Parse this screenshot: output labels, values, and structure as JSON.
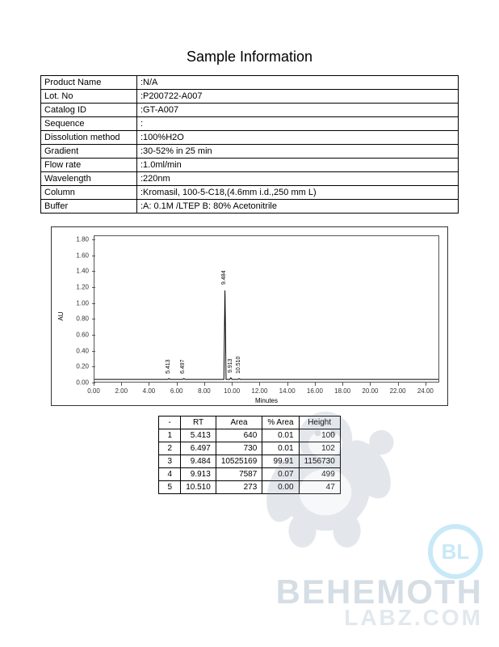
{
  "title": "Sample Information",
  "info_rows": [
    {
      "label": "Product Name",
      "value": ":N/A"
    },
    {
      "label": "Lot. No",
      "value": ":P200722-A007"
    },
    {
      "label": "Catalog ID",
      "value": ":GT-A007"
    },
    {
      "label": "Sequence",
      "value": ":"
    },
    {
      "label": "Dissolution method",
      "value": ":100%H2O"
    },
    {
      "label": "Gradient",
      "value": ":30-52% in 25 min"
    },
    {
      "label": "Flow rate",
      "value": ":1.0ml/min"
    },
    {
      "label": "Wavelength",
      "value": ":220nm"
    },
    {
      "label": "Column",
      "value": ":Kromasil, 100-5-C18,(4.6mm i.d.,250 mm L)"
    },
    {
      "label": "Buffer",
      "value": ":A: 0.1M /LTEP          B: 80% Acetonitrile"
    }
  ],
  "chart": {
    "type": "line",
    "x_label": "Minutes",
    "y_label": "AU",
    "xlim": [
      0,
      25
    ],
    "ylim": [
      0,
      1.85
    ],
    "x_ticks": [
      0.0,
      2.0,
      4.0,
      6.0,
      8.0,
      10.0,
      12.0,
      14.0,
      16.0,
      18.0,
      20.0,
      22.0,
      24.0
    ],
    "y_ticks": [
      0.0,
      0.2,
      0.4,
      0.6,
      0.8,
      1.0,
      1.2,
      1.4,
      1.6,
      1.8
    ],
    "line_color": "#000000",
    "background_color": "#ffffff",
    "baseline_y": 0.03,
    "peaks": [
      {
        "rt": 5.413,
        "height_au": 0.04,
        "label": "5.413"
      },
      {
        "rt": 6.497,
        "height_au": 0.04,
        "label": "6.497"
      },
      {
        "rt": 9.484,
        "height_au": 1.16,
        "label": "9.484"
      },
      {
        "rt": 9.913,
        "height_au": 0.05,
        "label": "9.913"
      },
      {
        "rt": 10.51,
        "height_au": 0.04,
        "label": "10.510"
      }
    ]
  },
  "results": {
    "columns": [
      "-",
      "RT",
      "Area",
      "% Area",
      "Height"
    ],
    "rows": [
      [
        "1",
        "5.413",
        "640",
        "0.01",
        "100"
      ],
      [
        "2",
        "6.497",
        "730",
        "0.01",
        "102"
      ],
      [
        "3",
        "9.484",
        "10525169",
        "99.91",
        "1156730"
      ],
      [
        "4",
        "9.913",
        "7587",
        "0.07",
        "499"
      ],
      [
        "5",
        "10.510",
        "273",
        "0.00",
        "47"
      ]
    ]
  },
  "watermark": {
    "circle_text": "BL",
    "line1": "BEHEMOTH",
    "line2": "LABZ.COM",
    "circle_color": "#2aa9e0",
    "text1_color": "#5b7a99",
    "text2_color": "#8aa6bd"
  }
}
